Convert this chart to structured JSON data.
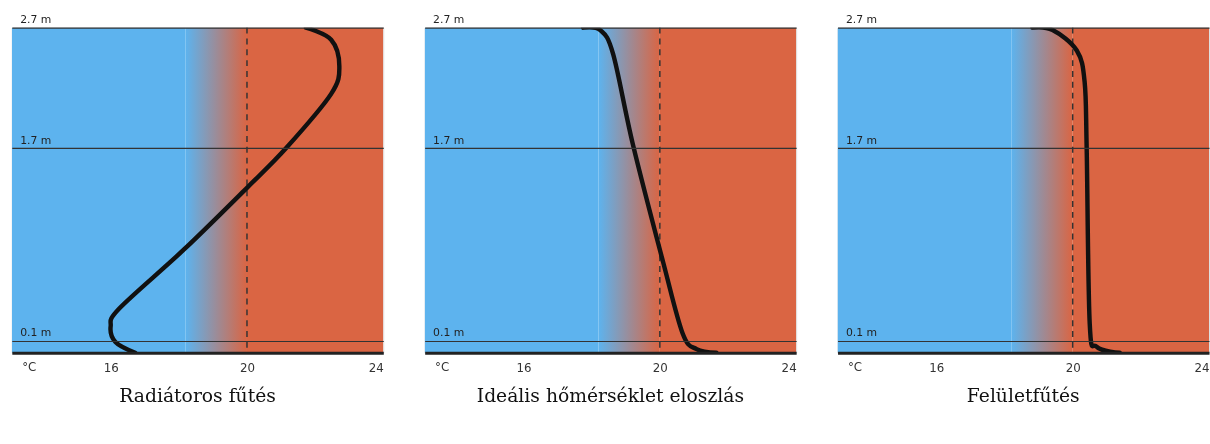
{
  "chart_data": [
    {
      "type": "line",
      "title": "Radiátoros fűtés",
      "xlabel": "°C",
      "xlim": [
        13.1,
        24
      ],
      "ylim": [
        0,
        2.7
      ],
      "xticks": [
        16,
        20,
        24
      ],
      "yticks": [
        {
          "value": 0.1,
          "label": "0.1 m"
        },
        {
          "value": 1.7,
          "label": "1.7 m"
        },
        {
          "value": 2.7,
          "label": "2.7 m"
        }
      ],
      "grid": "y",
      "bands": [
        {
          "axis": "x",
          "from": 13.1,
          "to": 18.2,
          "color": "#5db3ee"
        },
        {
          "axis": "x",
          "from": 18.2,
          "to": 20
        },
        {
          "axis": "x",
          "from": 20,
          "to": 24,
          "color": "#da6543"
        }
      ],
      "ref_lines": [
        {
          "axis": "x",
          "value": 20,
          "line_style": "dashed",
          "color": "#333333"
        }
      ],
      "series": [
        {
          "color": "#111111",
          "x": [
            21.73,
            22.47,
            22.71,
            22.47,
            21.15,
            20.0,
            18.16,
            16.26,
            16.0,
            16.14,
            16.72
          ],
          "values": [
            2.7,
            2.6,
            2.38,
            2.15,
            1.7,
            1.37,
            0.86,
            0.37,
            0.22,
            0.09,
            0
          ]
        }
      ]
    },
    {
      "type": "line",
      "title": "Ideális hőmérséklet eloszlás",
      "xlabel": "°C",
      "xlim": [
        13.1,
        24
      ],
      "ylim": [
        0,
        2.7
      ],
      "xticks": [
        16,
        20,
        24
      ],
      "yticks": [
        {
          "value": 0.1,
          "label": "0.1 m"
        },
        {
          "value": 1.7,
          "label": "1.7 m"
        },
        {
          "value": 2.7,
          "label": "2.7 m"
        }
      ],
      "grid": "y",
      "bands": [
        {
          "axis": "x",
          "from": 13.1,
          "to": 18.2,
          "color": "#5db3ee"
        },
        {
          "axis": "x",
          "from": 18.2,
          "to": 20
        },
        {
          "axis": "x",
          "from": 20,
          "to": 24,
          "color": "#da6543"
        }
      ],
      "ref_lines": [
        {
          "axis": "x",
          "value": 20,
          "line_style": "dashed",
          "color": "#333333"
        }
      ],
      "series": [
        {
          "color": "#111111",
          "x": [
            17.75,
            18.25,
            18.63,
            19.21,
            20.09,
            20.67,
            21.08,
            21.66
          ],
          "values": [
            2.7,
            2.68,
            2.48,
            1.73,
            0.76,
            0.16,
            0.03,
            0
          ]
        }
      ]
    },
    {
      "type": "line",
      "title": "Felületfűtés",
      "xlabel": "°C",
      "xlim": [
        13.1,
        24
      ],
      "ylim": [
        0,
        2.7
      ],
      "xticks": [
        16,
        20,
        24
      ],
      "yticks": [
        {
          "value": 0.1,
          "label": "0.1 m"
        },
        {
          "value": 1.7,
          "label": "1.7 m"
        },
        {
          "value": 2.7,
          "label": "2.7 m"
        }
      ],
      "grid": "y",
      "bands": [
        {
          "axis": "x",
          "from": 13.1,
          "to": 18.2,
          "color": "#5db3ee"
        },
        {
          "axis": "x",
          "from": 18.2,
          "to": 20
        },
        {
          "axis": "x",
          "from": 20,
          "to": 24,
          "color": "#da6543"
        }
      ],
      "ref_lines": [
        {
          "axis": "x",
          "value": 20,
          "line_style": "dashed",
          "color": "#333333"
        }
      ],
      "series": [
        {
          "color": "#111111",
          "x": [
            18.82,
            19.41,
            20.12,
            20.35,
            20.41,
            20.5,
            20.71,
            21.38
          ],
          "values": [
            2.7,
            2.68,
            2.51,
            2.25,
            1.7,
            0.24,
            0.05,
            0
          ]
        }
      ]
    }
  ]
}
